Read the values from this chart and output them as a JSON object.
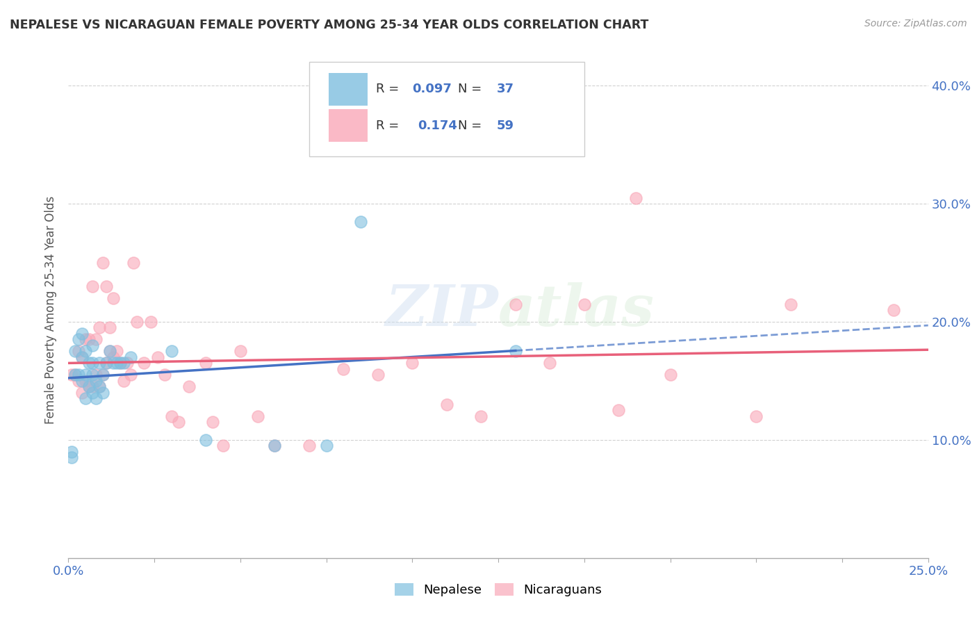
{
  "title": "NEPALESE VS NICARAGUAN FEMALE POVERTY AMONG 25-34 YEAR OLDS CORRELATION CHART",
  "source": "Source: ZipAtlas.com",
  "ylabel": "Female Poverty Among 25-34 Year Olds",
  "xlim": [
    0.0,
    0.25
  ],
  "ylim": [
    0.0,
    0.42
  ],
  "yticks": [
    0.1,
    0.2,
    0.3,
    0.4
  ],
  "ytick_labels": [
    "10.0%",
    "20.0%",
    "30.0%",
    "40.0%"
  ],
  "xticks": [
    0.0,
    0.025,
    0.05,
    0.075,
    0.1,
    0.125,
    0.15,
    0.175,
    0.2,
    0.225,
    0.25
  ],
  "nepalese_R": "0.097",
  "nepalese_N": "37",
  "nicaraguan_R": "0.174",
  "nicaraguan_N": "59",
  "nepalese_color": "#7fbfdf",
  "nicaraguan_color": "#f9a8b8",
  "nepalese_line_color": "#4472c4",
  "nicaraguan_line_color": "#e8607a",
  "watermark": "ZIPatlas",
  "nepalese_x": [
    0.001,
    0.001,
    0.002,
    0.002,
    0.003,
    0.003,
    0.004,
    0.004,
    0.004,
    0.005,
    0.005,
    0.005,
    0.006,
    0.006,
    0.007,
    0.007,
    0.007,
    0.007,
    0.008,
    0.008,
    0.009,
    0.009,
    0.01,
    0.01,
    0.011,
    0.012,
    0.013,
    0.014,
    0.015,
    0.016,
    0.018,
    0.03,
    0.04,
    0.06,
    0.075,
    0.085,
    0.13
  ],
  "nepalese_y": [
    0.085,
    0.09,
    0.155,
    0.175,
    0.155,
    0.185,
    0.15,
    0.17,
    0.19,
    0.135,
    0.155,
    0.175,
    0.145,
    0.165,
    0.14,
    0.155,
    0.165,
    0.18,
    0.135,
    0.15,
    0.145,
    0.165,
    0.14,
    0.155,
    0.165,
    0.175,
    0.165,
    0.165,
    0.165,
    0.165,
    0.17,
    0.175,
    0.1,
    0.095,
    0.095,
    0.285,
    0.175
  ],
  "nicaraguan_x": [
    0.001,
    0.002,
    0.003,
    0.003,
    0.004,
    0.004,
    0.005,
    0.005,
    0.006,
    0.006,
    0.007,
    0.007,
    0.008,
    0.008,
    0.009,
    0.009,
    0.01,
    0.01,
    0.011,
    0.011,
    0.012,
    0.012,
    0.013,
    0.013,
    0.014,
    0.015,
    0.016,
    0.017,
    0.018,
    0.019,
    0.02,
    0.022,
    0.024,
    0.026,
    0.028,
    0.03,
    0.032,
    0.035,
    0.04,
    0.042,
    0.045,
    0.05,
    0.055,
    0.06,
    0.07,
    0.08,
    0.09,
    0.1,
    0.11,
    0.12,
    0.13,
    0.14,
    0.15,
    0.16,
    0.165,
    0.175,
    0.2,
    0.21,
    0.24
  ],
  "nicaraguan_y": [
    0.155,
    0.155,
    0.15,
    0.175,
    0.14,
    0.17,
    0.15,
    0.185,
    0.145,
    0.185,
    0.145,
    0.23,
    0.155,
    0.185,
    0.145,
    0.195,
    0.155,
    0.25,
    0.165,
    0.23,
    0.175,
    0.195,
    0.17,
    0.22,
    0.175,
    0.165,
    0.15,
    0.165,
    0.155,
    0.25,
    0.2,
    0.165,
    0.2,
    0.17,
    0.155,
    0.12,
    0.115,
    0.145,
    0.165,
    0.115,
    0.095,
    0.175,
    0.12,
    0.095,
    0.095,
    0.16,
    0.155,
    0.165,
    0.13,
    0.12,
    0.215,
    0.165,
    0.215,
    0.125,
    0.305,
    0.155,
    0.12,
    0.215,
    0.21
  ],
  "background_color": "#ffffff",
  "grid_color": "#cccccc",
  "title_color": "#333333",
  "tick_label_color": "#4472c4"
}
